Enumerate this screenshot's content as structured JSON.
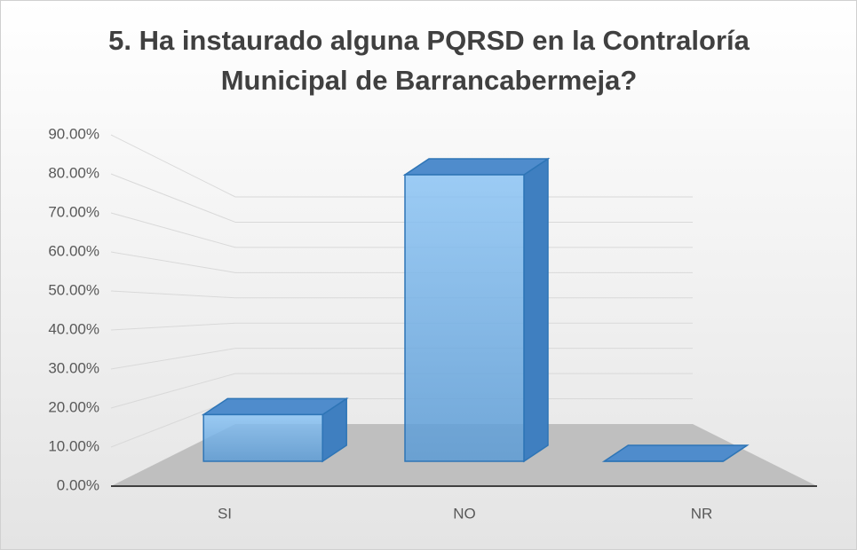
{
  "chart_data": {
    "type": "bar3d",
    "title": [
      "5. Ha instaurado alguna PQRSD en la Contraloría",
      "Municipal de Barrancabermeja?"
    ],
    "categories": [
      "SI",
      "NO",
      "NR"
    ],
    "values": [
      14,
      86,
      0
    ],
    "color": "#5b9bd5",
    "ylim": [
      0,
      90
    ],
    "yticks": [
      {
        "value": 0,
        "label": "0.00%"
      },
      {
        "value": 10,
        "label": "10.00%"
      },
      {
        "value": 20,
        "label": "20.00%"
      },
      {
        "value": 30,
        "label": "30.00%"
      },
      {
        "value": 40,
        "label": "40.00%"
      },
      {
        "value": 50,
        "label": "50.00%"
      },
      {
        "value": 60,
        "label": "60.00%"
      },
      {
        "value": 70,
        "label": "70.00%"
      },
      {
        "value": 80,
        "label": "80.00%"
      },
      {
        "value": 90,
        "label": "90.00%"
      }
    ],
    "grid": true
  }
}
